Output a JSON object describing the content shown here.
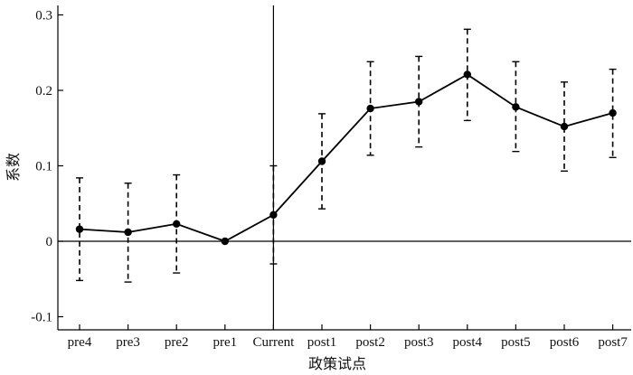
{
  "chart_data": {
    "type": "line",
    "title": "",
    "xlabel": "政策试点",
    "ylabel": "系数",
    "categories": [
      "pre4",
      "pre3",
      "pre2",
      "pre1",
      "Current",
      "post1",
      "post2",
      "post3",
      "post4",
      "post5",
      "post6",
      "post7"
    ],
    "series": [
      {
        "values": [
          0.016,
          0.012,
          0.023,
          0.0,
          0.035,
          0.106,
          0.176,
          0.185,
          0.221,
          0.178,
          0.152,
          0.17
        ],
        "ci_lower": [
          -0.052,
          -0.054,
          -0.042,
          0.0,
          -0.03,
          0.043,
          0.114,
          0.125,
          0.16,
          0.119,
          0.093,
          0.111
        ],
        "ci_upper": [
          0.084,
          0.077,
          0.088,
          0.0,
          0.1,
          0.169,
          0.238,
          0.245,
          0.281,
          0.238,
          0.211,
          0.228
        ]
      }
    ],
    "ylim": [
      -0.11,
      0.31
    ],
    "yticks": [
      -0.1,
      0,
      0.1,
      0.2,
      0.3
    ],
    "ytick_labels": [
      "-0.1",
      "0",
      "0.1",
      "0.2",
      "0.3"
    ],
    "reference_lines": {
      "horizontal_y": 0,
      "vertical_at_category": "Current"
    },
    "grid": false,
    "legend": "none",
    "colors": {
      "line": "#000000",
      "marker": "#000000",
      "errorbar": "#000000"
    }
  }
}
